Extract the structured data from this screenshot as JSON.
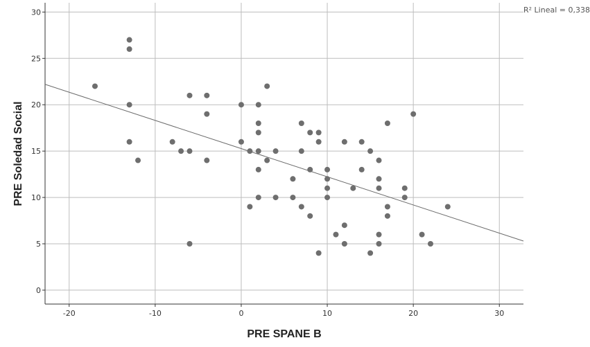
{
  "chart_data": {
    "type": "scatter",
    "xlabel": "PRE SPANE B",
    "ylabel": "PRE Soledad Social",
    "xlim": [
      -22.8,
      32.8
    ],
    "ylim": [
      -1.5,
      31
    ],
    "x_ticks": [
      "-20",
      "-10",
      "0",
      "10",
      "20",
      "30"
    ],
    "y_ticks": [
      "0",
      "5",
      "10",
      "15",
      "20",
      "25",
      "30"
    ],
    "x_tick_values": [
      -20,
      -10,
      0,
      10,
      20,
      30
    ],
    "y_tick_values": [
      0,
      5,
      10,
      15,
      20,
      25,
      30
    ],
    "grid": true,
    "r2_label": "R² Lineal = 0,338",
    "fit_line": {
      "x": [
        -22.8,
        32.8
      ],
      "y": [
        22.2,
        5.3
      ]
    },
    "points": [
      {
        "x": -17,
        "y": 22
      },
      {
        "x": -13,
        "y": 27
      },
      {
        "x": -13,
        "y": 26
      },
      {
        "x": -13,
        "y": 20
      },
      {
        "x": -13,
        "y": 16
      },
      {
        "x": -12,
        "y": 14
      },
      {
        "x": -8,
        "y": 16
      },
      {
        "x": -7,
        "y": 15
      },
      {
        "x": -6,
        "y": 21
      },
      {
        "x": -6,
        "y": 15
      },
      {
        "x": -6,
        "y": 5
      },
      {
        "x": -4,
        "y": 21
      },
      {
        "x": -4,
        "y": 19
      },
      {
        "x": -4,
        "y": 14
      },
      {
        "x": 0,
        "y": 20
      },
      {
        "x": 0,
        "y": 16
      },
      {
        "x": 1,
        "y": 15
      },
      {
        "x": 1,
        "y": 9
      },
      {
        "x": 2,
        "y": 20
      },
      {
        "x": 2,
        "y": 18
      },
      {
        "x": 2,
        "y": 17
      },
      {
        "x": 2,
        "y": 15
      },
      {
        "x": 2,
        "y": 13
      },
      {
        "x": 2,
        "y": 10
      },
      {
        "x": 3,
        "y": 22
      },
      {
        "x": 3,
        "y": 14
      },
      {
        "x": 4,
        "y": 15
      },
      {
        "x": 4,
        "y": 10
      },
      {
        "x": 6,
        "y": 12
      },
      {
        "x": 6,
        "y": 10
      },
      {
        "x": 7,
        "y": 18
      },
      {
        "x": 7,
        "y": 15
      },
      {
        "x": 7,
        "y": 9
      },
      {
        "x": 8,
        "y": 17
      },
      {
        "x": 8,
        "y": 13
      },
      {
        "x": 8,
        "y": 8
      },
      {
        "x": 9,
        "y": 17
      },
      {
        "x": 9,
        "y": 16
      },
      {
        "x": 9,
        "y": 4
      },
      {
        "x": 10,
        "y": 13
      },
      {
        "x": 10,
        "y": 12
      },
      {
        "x": 10,
        "y": 11
      },
      {
        "x": 10,
        "y": 10
      },
      {
        "x": 11,
        "y": 6
      },
      {
        "x": 12,
        "y": 16
      },
      {
        "x": 12,
        "y": 7
      },
      {
        "x": 12,
        "y": 5
      },
      {
        "x": 13,
        "y": 11
      },
      {
        "x": 14,
        "y": 16
      },
      {
        "x": 14,
        "y": 13
      },
      {
        "x": 15,
        "y": 15
      },
      {
        "x": 15,
        "y": 4
      },
      {
        "x": 16,
        "y": 14
      },
      {
        "x": 16,
        "y": 12
      },
      {
        "x": 16,
        "y": 11
      },
      {
        "x": 16,
        "y": 6
      },
      {
        "x": 16,
        "y": 5
      },
      {
        "x": 17,
        "y": 18
      },
      {
        "x": 17,
        "y": 9
      },
      {
        "x": 17,
        "y": 8
      },
      {
        "x": 19,
        "y": 11
      },
      {
        "x": 19,
        "y": 10
      },
      {
        "x": 20,
        "y": 19
      },
      {
        "x": 21,
        "y": 6
      },
      {
        "x": 22,
        "y": 5
      },
      {
        "x": 24,
        "y": 9
      }
    ],
    "colors": {
      "points": "#6e6e6e",
      "grid": "#bdbdbd",
      "axis": "#333333",
      "fit": "#6a6a6a"
    }
  }
}
